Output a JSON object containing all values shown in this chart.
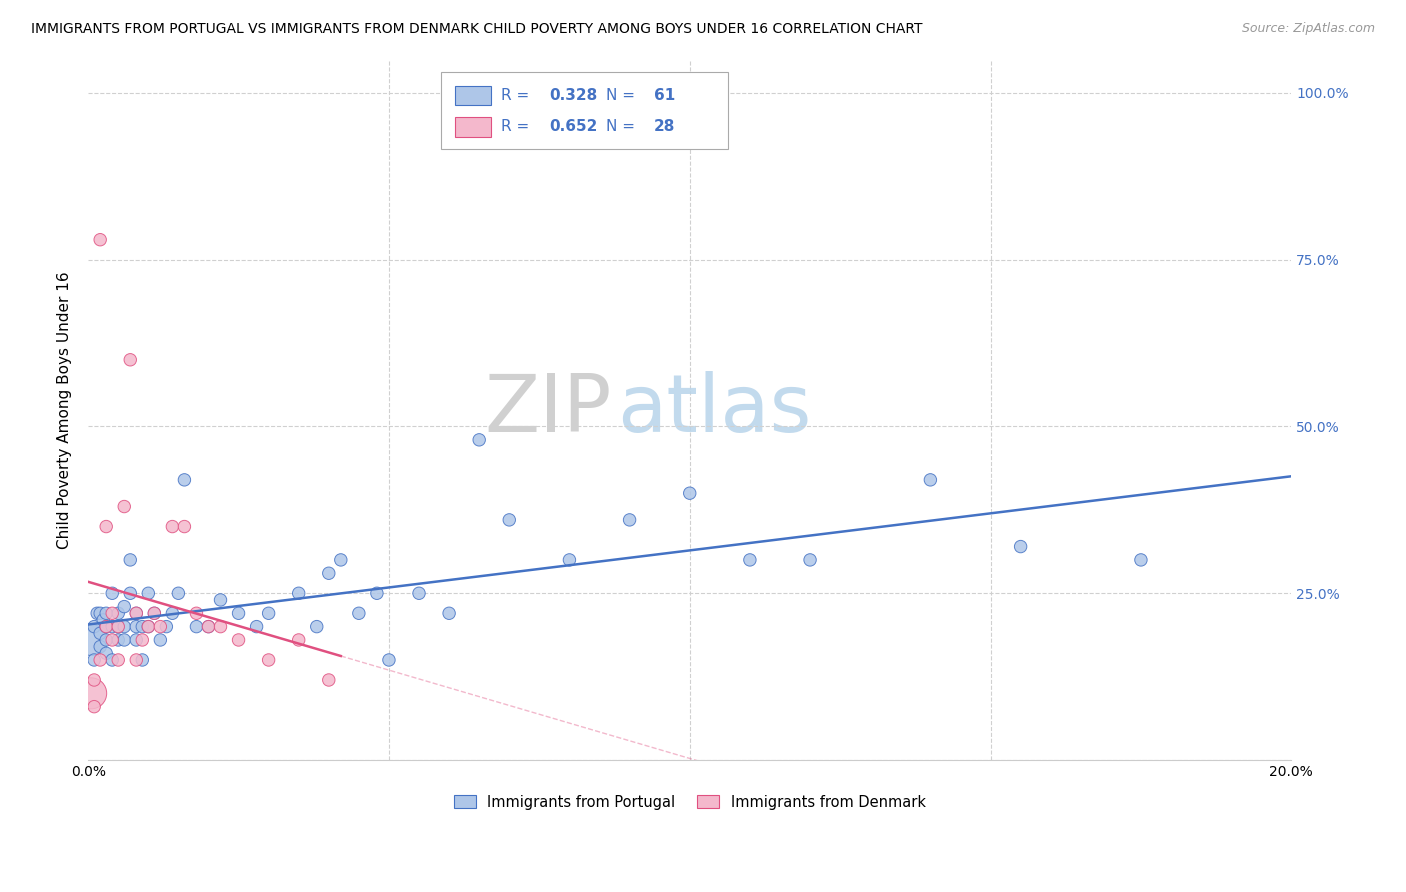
{
  "title": "IMMIGRANTS FROM PORTUGAL VS IMMIGRANTS FROM DENMARK CHILD POVERTY AMONG BOYS UNDER 16 CORRELATION CHART",
  "source": "Source: ZipAtlas.com",
  "ylabel": "Child Poverty Among Boys Under 16",
  "xlim": [
    0.0,
    0.2
  ],
  "ylim": [
    0.0,
    1.05
  ],
  "color_portugal": "#aec6e8",
  "color_denmark": "#f4b8cc",
  "color_line_portugal": "#4472c4",
  "color_line_denmark": "#e05080",
  "color_legend_text": "#4472c4",
  "watermark_zip": "ZIP",
  "watermark_atlas": "atlas",
  "legend_R1": "0.328",
  "legend_N1": "61",
  "legend_R2": "0.652",
  "legend_N2": "28",
  "portugal_x": [
    0.0005,
    0.001,
    0.001,
    0.0015,
    0.002,
    0.002,
    0.002,
    0.0025,
    0.003,
    0.003,
    0.003,
    0.003,
    0.004,
    0.004,
    0.004,
    0.005,
    0.005,
    0.005,
    0.006,
    0.006,
    0.006,
    0.007,
    0.007,
    0.008,
    0.008,
    0.008,
    0.009,
    0.009,
    0.01,
    0.01,
    0.011,
    0.012,
    0.013,
    0.014,
    0.015,
    0.016,
    0.018,
    0.02,
    0.022,
    0.025,
    0.028,
    0.03,
    0.035,
    0.038,
    0.04,
    0.042,
    0.045,
    0.048,
    0.05,
    0.055,
    0.06,
    0.065,
    0.07,
    0.08,
    0.09,
    0.1,
    0.11,
    0.12,
    0.14,
    0.155,
    0.175
  ],
  "portugal_y": [
    0.18,
    0.2,
    0.15,
    0.22,
    0.17,
    0.19,
    0.22,
    0.21,
    0.16,
    0.18,
    0.22,
    0.2,
    0.15,
    0.2,
    0.25,
    0.18,
    0.22,
    0.2,
    0.2,
    0.23,
    0.18,
    0.25,
    0.3,
    0.2,
    0.22,
    0.18,
    0.2,
    0.15,
    0.2,
    0.25,
    0.22,
    0.18,
    0.2,
    0.22,
    0.25,
    0.42,
    0.2,
    0.2,
    0.24,
    0.22,
    0.2,
    0.22,
    0.25,
    0.2,
    0.28,
    0.3,
    0.22,
    0.25,
    0.15,
    0.25,
    0.22,
    0.48,
    0.36,
    0.3,
    0.36,
    0.4,
    0.3,
    0.3,
    0.42,
    0.32,
    0.3
  ],
  "portugal_size_large": 500,
  "portugal_size_small": 80,
  "portugal_large_idx": 0,
  "denmark_x": [
    0.0005,
    0.001,
    0.001,
    0.002,
    0.002,
    0.003,
    0.003,
    0.004,
    0.004,
    0.005,
    0.005,
    0.006,
    0.007,
    0.008,
    0.008,
    0.009,
    0.01,
    0.011,
    0.012,
    0.014,
    0.016,
    0.018,
    0.02,
    0.022,
    0.025,
    0.03,
    0.035,
    0.04
  ],
  "denmark_y": [
    0.1,
    0.12,
    0.08,
    0.78,
    0.15,
    0.35,
    0.2,
    0.22,
    0.18,
    0.15,
    0.2,
    0.38,
    0.6,
    0.22,
    0.15,
    0.18,
    0.2,
    0.22,
    0.2,
    0.35,
    0.35,
    0.22,
    0.2,
    0.2,
    0.18,
    0.15,
    0.18,
    0.12
  ],
  "denmark_size_large": 500,
  "denmark_size_small": 80,
  "denmark_large_idx": 0
}
